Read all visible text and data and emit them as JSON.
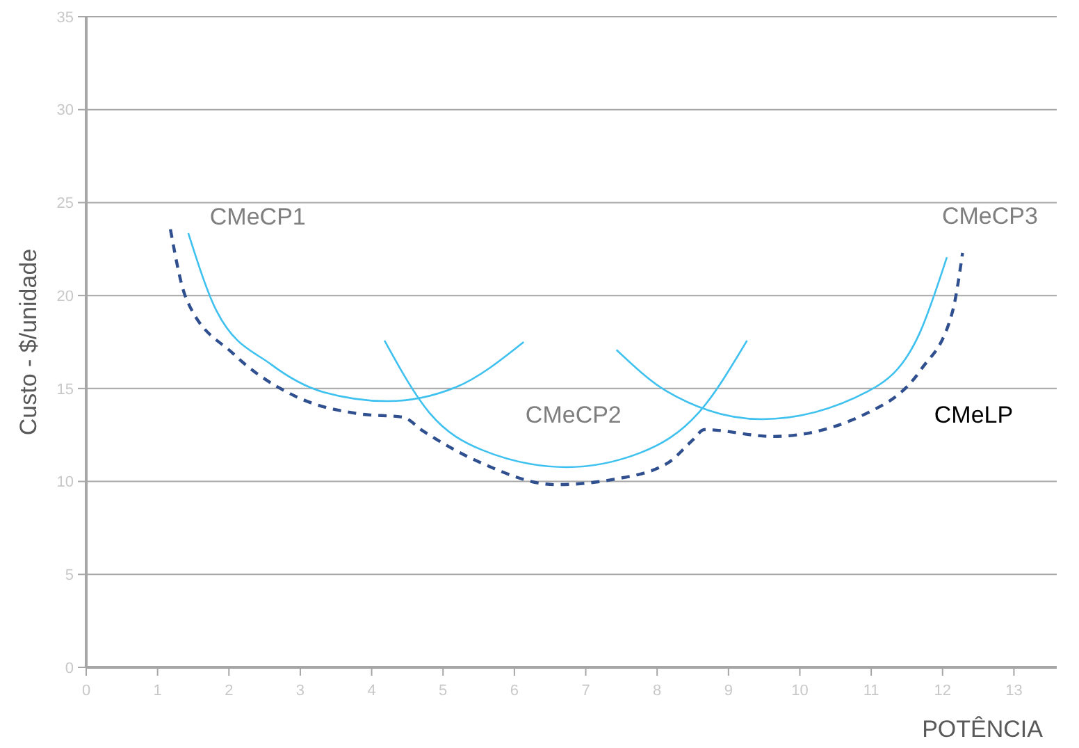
{
  "chart_data": {
    "type": "line",
    "xlabel": "POTÊNCIA",
    "ylabel": "Custo - $/unidade",
    "xlim": [
      0,
      13.6
    ],
    "ylim": [
      0,
      35
    ],
    "xticks": [
      0,
      1,
      2,
      3,
      4,
      5,
      6,
      7,
      8,
      9,
      10,
      11,
      12,
      13
    ],
    "yticks": [
      0,
      5,
      10,
      15,
      20,
      25,
      30,
      35
    ],
    "grid": "y",
    "series": [
      {
        "name": "CMeCP1",
        "color": "#3fc1f0",
        "line_style": "solid",
        "x": [
          1.43,
          1.83,
          2.59,
          3.33,
          4.22,
          5.18,
          6.13
        ],
        "values": [
          23.37,
          19.15,
          16.3,
          14.8,
          14.32,
          15.07,
          17.5
        ]
      },
      {
        "name": "CMeCP2",
        "color": "#3fc1f0",
        "line_style": "solid",
        "x": [
          4.18,
          4.81,
          5.55,
          6.73,
          7.77,
          8.58,
          9.26
        ],
        "values": [
          17.58,
          13.69,
          11.69,
          10.77,
          11.55,
          13.69,
          17.58
        ]
      },
      {
        "name": "CMeCP3",
        "color": "#3fc1f0",
        "line_style": "solid",
        "x": [
          7.43,
          8.14,
          9.47,
          10.95,
          11.68,
          12.06
        ],
        "values": [
          17.08,
          14.84,
          13.35,
          14.84,
          17.99,
          22.06
        ]
      },
      {
        "name": "CMeLP",
        "color": "#2f4f8f",
        "line_style": "dashed",
        "x": [
          1.18,
          1.4,
          2.07,
          2.95,
          3.84,
          4.43,
          4.73,
          5.55,
          6.58,
          7.4,
          8.14,
          8.51,
          8.66,
          9.62,
          10.95,
          11.69,
          12.14,
          12.28
        ],
        "values": [
          23.56,
          19.85,
          16.84,
          14.55,
          13.63,
          13.46,
          12.69,
          10.97,
          9.83,
          10.12,
          10.97,
          12.27,
          12.79,
          12.42,
          13.69,
          15.98,
          19.15,
          22.29
        ]
      }
    ]
  }
}
